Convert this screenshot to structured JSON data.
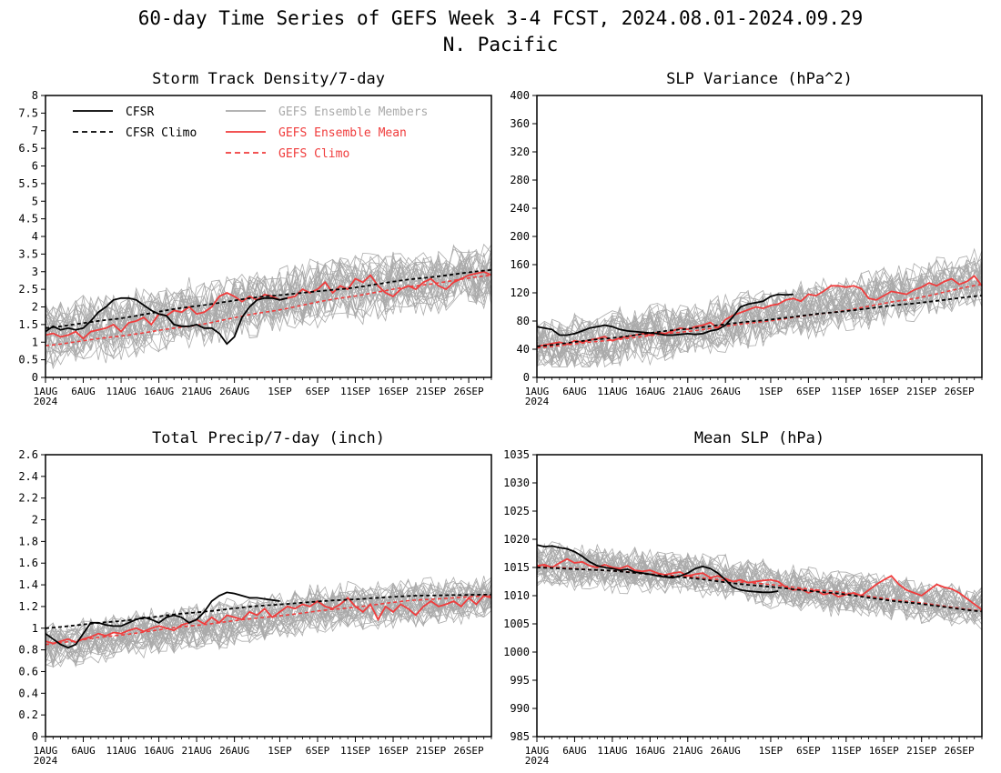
{
  "page": {
    "title": "60-day Time Series of GEFS Week 3-4 FCST, 2024.08.01-2024.09.29",
    "subtitle": "N. Pacific"
  },
  "legend": {
    "cfsr": "CFSR",
    "cfsr_climo": "CFSR Climo",
    "gefs_members": "GEFS Ensemble Members",
    "gefs_mean": "GEFS Ensemble Mean",
    "gefs_climo": "GEFS Climo",
    "placement": "top-left of first panel"
  },
  "colors": {
    "cfsr": "#000000",
    "members": "#aaaaaa",
    "gefs": "#f03c3c",
    "legend_members_text": "#aaaaaa",
    "legend_gefs_text": "#f03c3c"
  },
  "x_axis": {
    "days": 60,
    "ticks": [
      {
        "day": 1,
        "label": "1AUG"
      },
      {
        "day": 6,
        "label": "6AUG"
      },
      {
        "day": 11,
        "label": "11AUG"
      },
      {
        "day": 16,
        "label": "16AUG"
      },
      {
        "day": 21,
        "label": "21AUG"
      },
      {
        "day": 26,
        "label": "26AUG"
      },
      {
        "day": 32,
        "label": "1SEP"
      },
      {
        "day": 37,
        "label": "6SEP"
      },
      {
        "day": 42,
        "label": "11SEP"
      },
      {
        "day": 47,
        "label": "16SEP"
      },
      {
        "day": 52,
        "label": "21SEP"
      },
      {
        "day": 57,
        "label": "26SEP"
      }
    ],
    "year_label": "2024"
  },
  "chart_data": [
    {
      "type": "line",
      "title": "Storm Track Density/7-day",
      "ylim": [
        0,
        8
      ],
      "yticks": [
        "0",
        "0.5",
        "1",
        "1.5",
        "2",
        "2.5",
        "3",
        "3.5",
        "4",
        "4.5",
        "5",
        "5.5",
        "6",
        "6.5",
        "7",
        "7.5",
        "8"
      ],
      "ytick_values": [
        0,
        0.5,
        1,
        1.5,
        2,
        2.5,
        3,
        3.5,
        4,
        4.5,
        5,
        5.5,
        6,
        6.5,
        7,
        7.5,
        8
      ],
      "show_legend": true,
      "cfsr": [
        1.3,
        1.45,
        1.35,
        1.4,
        1.35,
        1.4,
        1.6,
        1.85,
        2.0,
        2.2,
        2.25,
        2.25,
        2.2,
        2.05,
        1.9,
        1.8,
        1.75,
        1.5,
        1.45,
        1.45,
        1.5,
        1.4,
        1.4,
        1.25,
        0.95,
        1.15,
        1.7,
        2.0,
        2.2,
        2.25,
        2.25,
        2.2,
        2.25
      ],
      "cfsr_climo": [
        [
          1,
          1.4
        ],
        [
          10,
          1.65
        ],
        [
          20,
          2.0
        ],
        [
          30,
          2.3
        ],
        [
          40,
          2.5
        ],
        [
          50,
          2.8
        ],
        [
          60,
          3.05
        ]
      ],
      "gefs_mean": [
        1.2,
        1.25,
        1.15,
        1.2,
        1.3,
        1.1,
        1.3,
        1.35,
        1.4,
        1.5,
        1.3,
        1.55,
        1.6,
        1.7,
        1.5,
        1.8,
        1.75,
        1.9,
        1.85,
        2.0,
        1.8,
        1.85,
        2.0,
        2.3,
        2.4,
        2.3,
        2.15,
        2.3,
        2.2,
        2.35,
        2.3,
        2.2,
        2.25,
        2.3,
        2.5,
        2.4,
        2.5,
        2.7,
        2.4,
        2.6,
        2.5,
        2.8,
        2.7,
        2.9,
        2.6,
        2.4,
        2.3,
        2.5,
        2.6,
        2.5,
        2.7,
        2.8,
        2.6,
        2.5,
        2.7,
        2.8,
        2.9,
        2.95,
        3.0,
        2.9
      ],
      "gefs_climo": [
        [
          1,
          0.9
        ],
        [
          10,
          1.15
        ],
        [
          20,
          1.45
        ],
        [
          30,
          1.85
        ],
        [
          40,
          2.25
        ],
        [
          50,
          2.6
        ],
        [
          60,
          2.9
        ]
      ],
      "members": {
        "count": 30,
        "base": [
          [
            1,
            1.2
          ],
          [
            20,
            1.8
          ],
          [
            40,
            2.5
          ],
          [
            60,
            2.9
          ]
        ],
        "spread": 0.75,
        "min": 0,
        "max": 5
      }
    },
    {
      "type": "line",
      "title": "SLP Variance (hPa^2)",
      "ylim": [
        0,
        400
      ],
      "yticks": [
        "0",
        "40",
        "80",
        "120",
        "160",
        "200",
        "240",
        "280",
        "320",
        "360",
        "400"
      ],
      "ytick_values": [
        0,
        40,
        80,
        120,
        160,
        200,
        240,
        280,
        320,
        360,
        400
      ],
      "show_legend": false,
      "cfsr": [
        72,
        70,
        68,
        60,
        60,
        62,
        66,
        70,
        72,
        74,
        72,
        68,
        66,
        65,
        64,
        63,
        62,
        60,
        60,
        61,
        62,
        61,
        62,
        66,
        68,
        74,
        86,
        100,
        104,
        106,
        108,
        115,
        118,
        117,
        118
      ],
      "cfsr_climo": [
        [
          1,
          44
        ],
        [
          10,
          55
        ],
        [
          20,
          68
        ],
        [
          30,
          80
        ],
        [
          40,
          92
        ],
        [
          50,
          104
        ],
        [
          60,
          116
        ]
      ],
      "gefs_mean": [
        44,
        46,
        48,
        50,
        47,
        52,
        50,
        53,
        55,
        58,
        52,
        56,
        58,
        60,
        62,
        60,
        64,
        62,
        66,
        70,
        68,
        72,
        74,
        78,
        70,
        82,
        88,
        92,
        96,
        100,
        98,
        102,
        104,
        110,
        112,
        108,
        118,
        116,
        122,
        130,
        130,
        128,
        130,
        126,
        112,
        110,
        116,
        122,
        120,
        118,
        124,
        128,
        134,
        130,
        136,
        140,
        132,
        136,
        144,
        130
      ],
      "gefs_climo": [
        [
          1,
          42
        ],
        [
          10,
          52
        ],
        [
          20,
          64
        ],
        [
          30,
          78
        ],
        [
          40,
          92
        ],
        [
          50,
          110
        ],
        [
          60,
          132
        ]
      ],
      "members": {
        "count": 30,
        "base": [
          [
            1,
            42
          ],
          [
            20,
            66
          ],
          [
            40,
            100
          ],
          [
            60,
            140
          ]
        ],
        "spread": 32,
        "min": 15,
        "max": 285
      }
    },
    {
      "type": "line",
      "title": "Total Precip/7-day (inch)",
      "ylim": [
        0,
        2.6
      ],
      "yticks": [
        "0",
        "0.2",
        "0.4",
        "0.6",
        "0.8",
        "1",
        "1.2",
        "1.4",
        "1.6",
        "1.8",
        "2",
        "2.2",
        "2.4",
        "2.6"
      ],
      "ytick_values": [
        0,
        0.2,
        0.4,
        0.6,
        0.8,
        1,
        1.2,
        1.4,
        1.6,
        1.8,
        2,
        2.2,
        2.4,
        2.6
      ],
      "show_legend": false,
      "cfsr": [
        0.95,
        0.9,
        0.85,
        0.82,
        0.85,
        0.95,
        1.05,
        1.05,
        1.03,
        1.02,
        1.02,
        1.05,
        1.08,
        1.1,
        1.08,
        1.05,
        1.1,
        1.12,
        1.1,
        1.05,
        1.08,
        1.15,
        1.25,
        1.3,
        1.33,
        1.32,
        1.3,
        1.28,
        1.28,
        1.27,
        1.26,
        1.25
      ],
      "cfsr_climo": [
        [
          1,
          1.0
        ],
        [
          10,
          1.06
        ],
        [
          20,
          1.14
        ],
        [
          30,
          1.21
        ],
        [
          40,
          1.26
        ],
        [
          50,
          1.3
        ],
        [
          60,
          1.31
        ]
      ],
      "gefs_mean": [
        0.88,
        0.86,
        0.88,
        0.9,
        0.87,
        0.9,
        0.92,
        0.95,
        0.93,
        0.96,
        0.95,
        0.98,
        1.0,
        0.97,
        1.0,
        1.02,
        1.0,
        0.98,
        1.03,
        1.05,
        1.08,
        1.04,
        1.1,
        1.05,
        1.12,
        1.1,
        1.08,
        1.15,
        1.12,
        1.18,
        1.1,
        1.15,
        1.2,
        1.18,
        1.22,
        1.2,
        1.25,
        1.2,
        1.18,
        1.22,
        1.28,
        1.2,
        1.15,
        1.22,
        1.08,
        1.2,
        1.15,
        1.22,
        1.18,
        1.12,
        1.2,
        1.25,
        1.2,
        1.22,
        1.25,
        1.2,
        1.28,
        1.22,
        1.3,
        1.28
      ],
      "gefs_climo": [
        [
          1,
          0.85
        ],
        [
          10,
          0.93
        ],
        [
          20,
          1.02
        ],
        [
          30,
          1.1
        ],
        [
          40,
          1.18
        ],
        [
          50,
          1.26
        ],
        [
          60,
          1.3
        ]
      ],
      "members": {
        "count": 30,
        "base": [
          [
            1,
            0.85
          ],
          [
            20,
            1.0
          ],
          [
            40,
            1.2
          ],
          [
            60,
            1.28
          ]
        ],
        "spread": 0.17,
        "min": 0.4,
        "max": 1.9
      }
    },
    {
      "type": "line",
      "title": "Mean SLP (hPa)",
      "ylim": [
        985,
        1035
      ],
      "yticks": [
        "985",
        "990",
        "995",
        "1000",
        "1005",
        "1010",
        "1015",
        "1020",
        "1025",
        "1030",
        "1035"
      ],
      "ytick_values": [
        985,
        990,
        995,
        1000,
        1005,
        1010,
        1015,
        1020,
        1025,
        1030,
        1035
      ],
      "show_legend": false,
      "cfsr": [
        1019,
        1018.7,
        1018.8,
        1018.5,
        1018.3,
        1017.8,
        1017,
        1016,
        1015.3,
        1015,
        1014.8,
        1014.5,
        1014.7,
        1014.2,
        1014,
        1013.8,
        1013.5,
        1013.3,
        1013.2,
        1013.5,
        1014,
        1014.8,
        1015.2,
        1014.8,
        1014,
        1012.8,
        1011.5,
        1011,
        1010.8,
        1010.7,
        1010.6,
        1010.6,
        1010.8
      ],
      "cfsr_climo": [
        [
          1,
          1015
        ],
        [
          10,
          1014.5
        ],
        [
          20,
          1013.3
        ],
        [
          30,
          1011.8
        ],
        [
          40,
          1010.5
        ],
        [
          50,
          1008.8
        ],
        [
          60,
          1007.2
        ]
      ],
      "gefs_mean": [
        1015.3,
        1015.5,
        1015,
        1015.8,
        1016.5,
        1015.8,
        1016,
        1015.3,
        1015,
        1015.5,
        1015,
        1014.8,
        1015.3,
        1014.5,
        1014.3,
        1014.5,
        1014,
        1013.7,
        1014,
        1014.2,
        1013.5,
        1013.8,
        1014,
        1013.2,
        1013.5,
        1013,
        1012.5,
        1012.8,
        1012.3,
        1012.5,
        1012.7,
        1012.8,
        1012.5,
        1011.5,
        1011,
        1011.2,
        1010.5,
        1011,
        1010.2,
        1010.5,
        1009.8,
        1010.2,
        1010.5,
        1010,
        1011,
        1012,
        1012.8,
        1013.5,
        1012,
        1011,
        1010.5,
        1010,
        1011,
        1012,
        1011.5,
        1011.2,
        1010.5,
        1009.5,
        1008.5,
        1007.5
      ],
      "gefs_climo": [
        [
          1,
          1015.2
        ],
        [
          10,
          1014.5
        ],
        [
          20,
          1013.5
        ],
        [
          30,
          1012.2
        ],
        [
          40,
          1010.8
        ],
        [
          50,
          1009
        ],
        [
          60,
          1007.3
        ]
      ],
      "members": {
        "count": 30,
        "base": [
          [
            1,
            1015.5
          ],
          [
            20,
            1014
          ],
          [
            40,
            1010.5
          ],
          [
            60,
            1008
          ]
        ],
        "spread": 3.2,
        "min": 997,
        "max": 1026
      }
    }
  ]
}
